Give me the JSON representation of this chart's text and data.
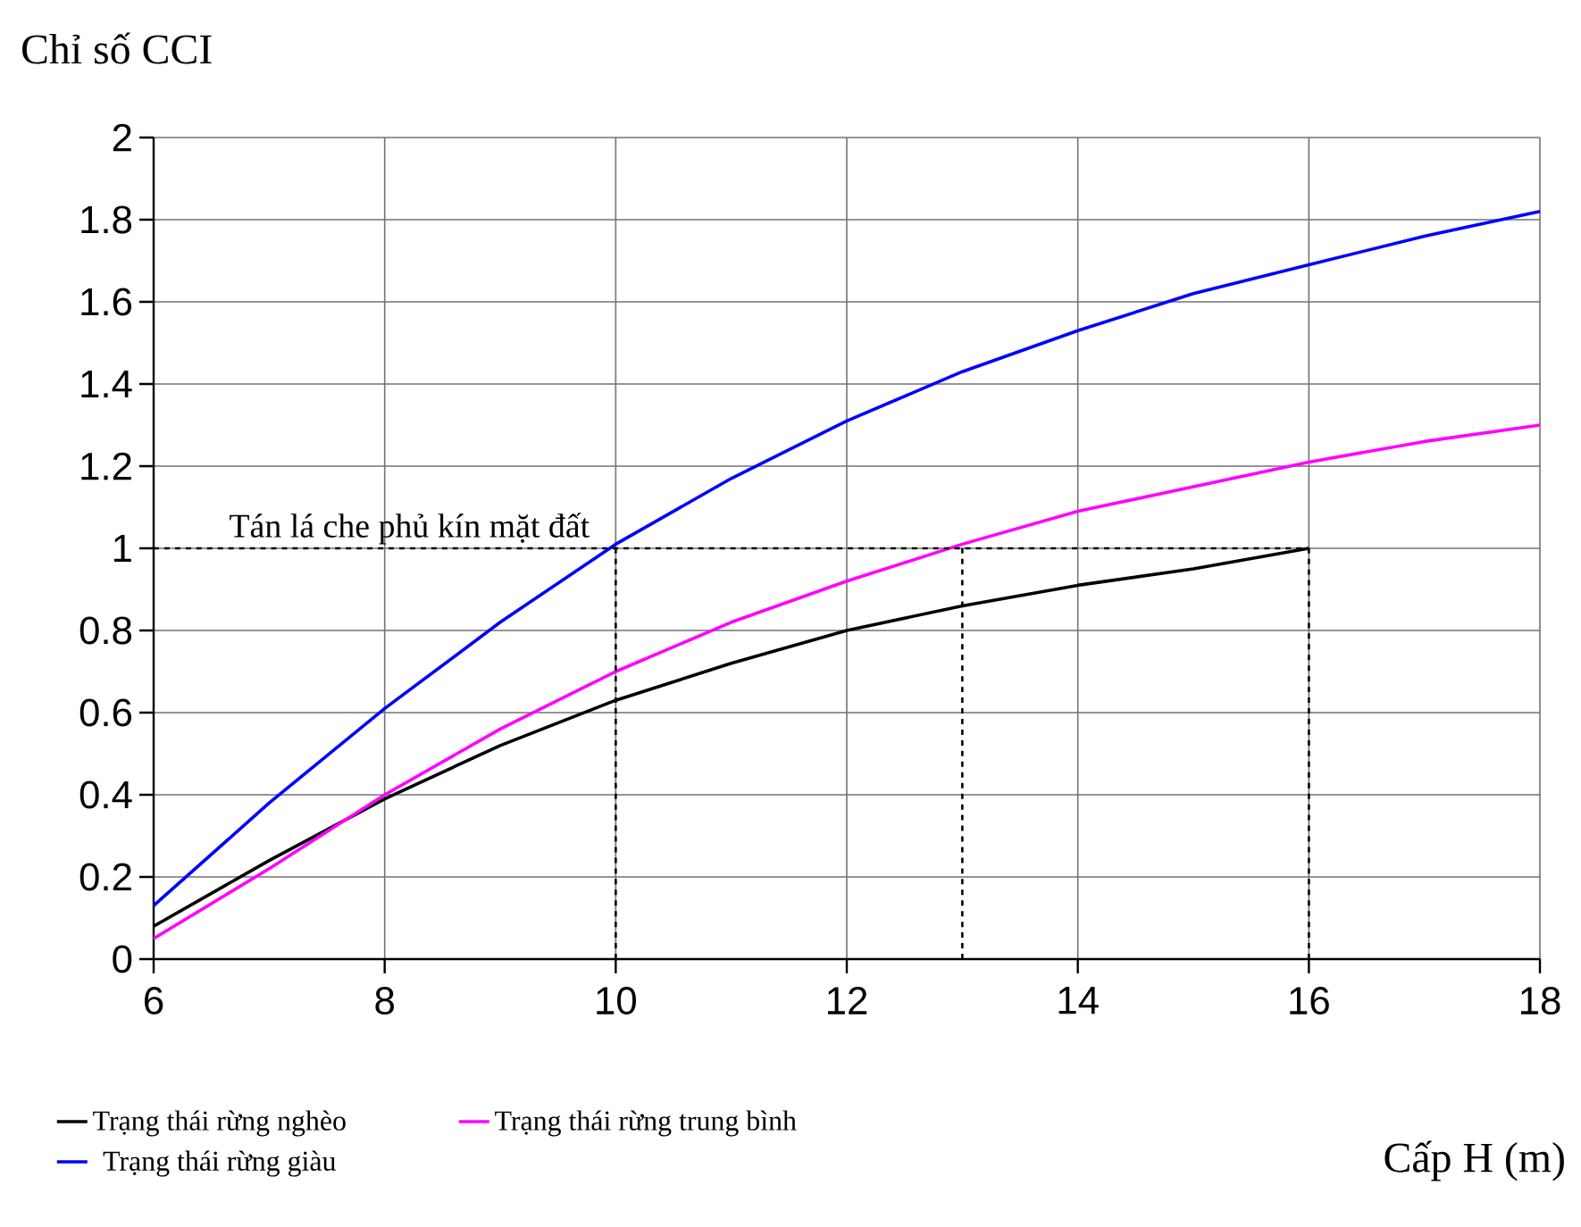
{
  "chart_data": {
    "type": "line",
    "xlabel": "Cấp H (m)",
    "ylabel": "Chỉ số CCI",
    "xlim": [
      6,
      18
    ],
    "ylim": [
      0,
      2
    ],
    "xticks": [
      6,
      8,
      10,
      12,
      14,
      16,
      18
    ],
    "yticks": [
      0,
      0.2,
      0.4,
      0.6,
      0.8,
      1,
      1.2,
      1.4,
      1.6,
      1.8,
      2
    ],
    "grid": true,
    "legend": "bottom",
    "marker": "none",
    "line_style": "solid",
    "series": [
      {
        "name": "Trạng thái rừng nghèo",
        "color": "#000000",
        "x": [
          6,
          7,
          8,
          9,
          10,
          11,
          12,
          13,
          14,
          15,
          16
        ],
        "values": [
          0.08,
          0.24,
          0.39,
          0.52,
          0.63,
          0.72,
          0.8,
          0.86,
          0.91,
          0.95,
          1.0
        ]
      },
      {
        "name": "Trạng thái rừng trung bình",
        "color": "#ff00ff",
        "x": [
          6,
          7,
          8,
          9,
          10,
          11,
          12,
          13,
          14,
          15,
          16,
          17,
          18
        ],
        "values": [
          0.05,
          0.22,
          0.4,
          0.56,
          0.7,
          0.82,
          0.92,
          1.01,
          1.09,
          1.15,
          1.21,
          1.26,
          1.3
        ]
      },
      {
        "name": "Trạng thái rừng giàu",
        "color": "#0000ff",
        "x": [
          6,
          7,
          8,
          9,
          10,
          11,
          12,
          13,
          14,
          15,
          16,
          17,
          18
        ],
        "values": [
          0.13,
          0.38,
          0.61,
          0.82,
          1.01,
          1.17,
          1.31,
          1.43,
          1.53,
          1.62,
          1.69,
          1.76,
          1.82
        ]
      }
    ],
    "ref_lines": [
      {
        "axis": "y",
        "value": 1,
        "label": "Tán lá che phủ kín mặt đất",
        "color": "#000000",
        "line_style": "dashed"
      },
      {
        "axis": "x",
        "value": 10,
        "color": "#000000",
        "line_style": "dashed"
      },
      {
        "axis": "x",
        "value": 13,
        "color": "#000000",
        "line_style": "dashed"
      },
      {
        "axis": "x",
        "value": 16,
        "color": "#000000",
        "line_style": "dashed"
      }
    ]
  }
}
